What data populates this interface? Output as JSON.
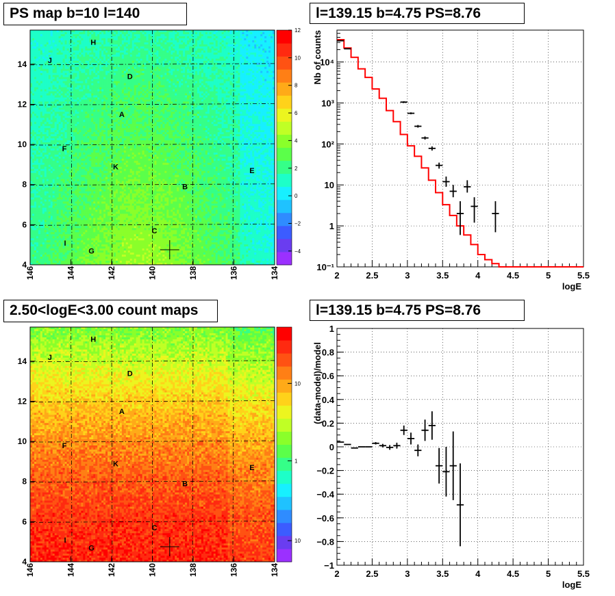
{
  "panels": {
    "ps_map": {
      "title": "PS map b=10 l=140",
      "colorbar_ticks": [
        "12",
        "10",
        "8",
        "6",
        "4",
        "2",
        "0",
        "−2",
        "−4"
      ],
      "colorbar_values": [
        12,
        10,
        8,
        6,
        4,
        2,
        0,
        -2,
        -4
      ],
      "colorbar_range": [
        -5,
        12
      ],
      "x_ticks": [
        "146",
        "144",
        "142",
        "140",
        "138",
        "136",
        "134"
      ],
      "y_ticks": [
        "4",
        "6",
        "8",
        "10",
        "12",
        "14"
      ],
      "labels": [
        "H",
        "J",
        "D",
        "A",
        "F",
        "K",
        "E",
        "B",
        "C",
        "I",
        "G"
      ]
    },
    "count_map": {
      "title": "2.50<logE<3.00 count maps",
      "colorbar_ticks": [
        "10",
        "1",
        "10⁻¹"
      ],
      "x_ticks": [
        "146",
        "144",
        "142",
        "140",
        "138",
        "136",
        "134"
      ],
      "y_ticks": [
        "4",
        "6",
        "8",
        "10",
        "12",
        "14"
      ],
      "labels": [
        "H",
        "J",
        "D",
        "A",
        "F",
        "K",
        "E",
        "B",
        "C",
        "I",
        "G"
      ]
    },
    "spectrum": {
      "title": "l=139.15 b=4.75 PS=8.76",
      "ylabel": "Nb of counts",
      "xlabel": "logE",
      "x_ticks": [
        "2",
        "2.5",
        "3",
        "3.5",
        "4",
        "4.5",
        "5",
        "5.5"
      ],
      "y_ticks": [
        "10⁻¹",
        "1",
        "10",
        "10²",
        "10³",
        "10⁴"
      ]
    },
    "residual": {
      "title": "l=139.15 b=4.75 PS=8.76",
      "ylabel": "(data-model)/model",
      "xlabel": "logE",
      "x_ticks": [
        "2",
        "2.5",
        "3",
        "3.5",
        "4",
        "4.5",
        "5",
        "5.5"
      ],
      "y_ticks": [
        "1",
        "0.8",
        "0.6",
        "0.4",
        "0.2",
        "0",
        "−0.2",
        "−0.4",
        "−0.6",
        "−0.8",
        "−1"
      ]
    }
  },
  "colors": {
    "model_line": "#ff0000",
    "data": "#000000",
    "grid": "#000000"
  },
  "chart_data": [
    {
      "type": "heatmap",
      "title": "PS map b=10 l=140",
      "xlim": [
        146,
        134
      ],
      "ylim": [
        4,
        15.7
      ],
      "zlim": [
        -5,
        12
      ],
      "source_labels": [
        {
          "name": "H",
          "l": 142.9,
          "b": 15.1
        },
        {
          "name": "J",
          "l": 145.0,
          "b": 14.2
        },
        {
          "name": "D",
          "l": 141.1,
          "b": 13.4
        },
        {
          "name": "A",
          "l": 141.5,
          "b": 11.5
        },
        {
          "name": "F",
          "l": 144.3,
          "b": 9.8
        },
        {
          "name": "K",
          "l": 141.8,
          "b": 8.9
        },
        {
          "name": "E",
          "l": 135.1,
          "b": 8.7
        },
        {
          "name": "B",
          "l": 138.4,
          "b": 7.9
        },
        {
          "name": "C",
          "l": 139.9,
          "b": 5.7
        },
        {
          "name": "I",
          "l": 144.2,
          "b": 5.1
        },
        {
          "name": "G",
          "l": 143.0,
          "b": 4.7
        }
      ],
      "marker": {
        "l": 139.15,
        "b": 4.75
      }
    },
    {
      "type": "heatmap",
      "title": "2.50<logE<3.00 count maps",
      "xlim": [
        146,
        134
      ],
      "ylim": [
        4,
        15.7
      ],
      "log_z": true,
      "source_labels": [
        {
          "name": "H",
          "l": 142.9,
          "b": 15.1
        },
        {
          "name": "J",
          "l": 145.0,
          "b": 14.2
        },
        {
          "name": "D",
          "l": 141.1,
          "b": 13.4
        },
        {
          "name": "A",
          "l": 141.5,
          "b": 11.5
        },
        {
          "name": "F",
          "l": 144.3,
          "b": 9.8
        },
        {
          "name": "K",
          "l": 141.8,
          "b": 8.9
        },
        {
          "name": "E",
          "l": 135.1,
          "b": 8.7
        },
        {
          "name": "B",
          "l": 138.4,
          "b": 7.9
        },
        {
          "name": "C",
          "l": 139.9,
          "b": 5.7
        },
        {
          "name": "I",
          "l": 144.2,
          "b": 5.1
        },
        {
          "name": "G",
          "l": 143.0,
          "b": 4.7
        }
      ],
      "marker": {
        "l": 139.15,
        "b": 4.75
      }
    },
    {
      "type": "line",
      "title": "l=139.15 b=4.75 PS=8.76",
      "xlabel": "logE",
      "ylabel": "Nb of counts",
      "xlim": [
        2,
        5.5
      ],
      "ylim": [
        0.1,
        60000
      ],
      "log_y": true,
      "grid": true,
      "model_bin_edges": [
        2.0,
        2.1,
        2.2,
        2.3,
        2.4,
        2.5,
        2.6,
        2.7,
        2.8,
        2.9,
        3.0,
        3.1,
        3.2,
        3.3,
        3.4,
        3.5,
        3.6,
        3.7,
        3.8,
        3.9,
        4.0,
        4.1,
        4.2,
        4.3,
        4.4,
        5.5
      ],
      "model_values": [
        35000,
        22000,
        13000,
        6800,
        4200,
        2200,
        1300,
        650,
        350,
        170,
        90,
        50,
        26,
        13,
        6.5,
        3.3,
        1.8,
        1.0,
        0.6,
        0.35,
        0.2,
        0.15,
        0.12,
        0.1,
        0.1
      ],
      "data_points": [
        {
          "x": 2.05,
          "y": 33000,
          "ylo": 33000,
          "yhi": 33000
        },
        {
          "x": 2.15,
          "y": 21000,
          "ylo": 21000,
          "yhi": 21000
        },
        {
          "x": 2.95,
          "y": 1050,
          "ylo": 1000,
          "yhi": 1100
        },
        {
          "x": 3.05,
          "y": 560,
          "ylo": 530,
          "yhi": 590
        },
        {
          "x": 3.15,
          "y": 270,
          "ylo": 250,
          "yhi": 290
        },
        {
          "x": 3.25,
          "y": 140,
          "ylo": 128,
          "yhi": 152
        },
        {
          "x": 3.35,
          "y": 78,
          "ylo": 69,
          "yhi": 87
        },
        {
          "x": 3.45,
          "y": 30,
          "ylo": 25,
          "yhi": 35
        },
        {
          "x": 3.55,
          "y": 12,
          "ylo": 9,
          "yhi": 16
        },
        {
          "x": 3.65,
          "y": 7,
          "ylo": 5,
          "yhi": 10
        },
        {
          "x": 3.75,
          "y": 2,
          "ylo": 0.6,
          "yhi": 4
        },
        {
          "x": 3.85,
          "y": 9,
          "ylo": 6.5,
          "yhi": 13
        },
        {
          "x": 3.95,
          "y": 3,
          "ylo": 1.2,
          "yhi": 5
        },
        {
          "x": 4.25,
          "y": 2,
          "ylo": 0.7,
          "yhi": 4
        }
      ]
    },
    {
      "type": "scatter",
      "title": "l=139.15 b=4.75 PS=8.76",
      "xlabel": "logE",
      "ylabel": "(data-model)/model",
      "xlim": [
        2,
        5.5
      ],
      "ylim": [
        -1,
        1
      ],
      "grid": true,
      "data_points": [
        {
          "x": 2.05,
          "y": 0.04,
          "err": 0
        },
        {
          "x": 2.15,
          "y": 0.02,
          "err": 0
        },
        {
          "x": 2.25,
          "y": -0.01,
          "err": 0
        },
        {
          "x": 2.35,
          "y": 0.0,
          "err": 0
        },
        {
          "x": 2.45,
          "y": 0.0,
          "err": 0
        },
        {
          "x": 2.55,
          "y": 0.03,
          "err": 0.01
        },
        {
          "x": 2.65,
          "y": 0.01,
          "err": 0.015
        },
        {
          "x": 2.75,
          "y": -0.005,
          "err": 0.02
        },
        {
          "x": 2.85,
          "y": 0.01,
          "err": 0.025
        },
        {
          "x": 2.95,
          "y": 0.14,
          "err": 0.04
        },
        {
          "x": 3.05,
          "y": 0.07,
          "err": 0.05
        },
        {
          "x": 3.15,
          "y": -0.03,
          "err": 0.05
        },
        {
          "x": 3.25,
          "y": 0.14,
          "err": 0.09
        },
        {
          "x": 3.35,
          "y": 0.18,
          "err": 0.12
        },
        {
          "x": 3.45,
          "y": -0.16,
          "err": 0.15
        },
        {
          "x": 3.55,
          "y": -0.21,
          "err": 0.21
        },
        {
          "x": 3.65,
          "y": -0.16,
          "err": 0.29
        },
        {
          "x": 3.75,
          "y": -0.49,
          "err": 0.35
        }
      ]
    }
  ]
}
